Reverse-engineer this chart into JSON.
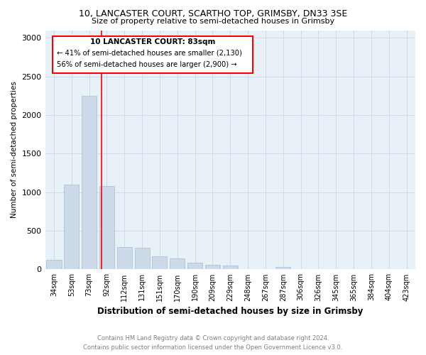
{
  "title1": "10, LANCASTER COURT, SCARTHO TOP, GRIMSBY, DN33 3SE",
  "title2": "Size of property relative to semi-detached houses in Grimsby",
  "xlabel": "Distribution of semi-detached houses by size in Grimsby",
  "ylabel": "Number of semi-detached properties",
  "categories": [
    "34sqm",
    "53sqm",
    "73sqm",
    "92sqm",
    "112sqm",
    "131sqm",
    "151sqm",
    "170sqm",
    "190sqm",
    "209sqm",
    "229sqm",
    "248sqm",
    "267sqm",
    "287sqm",
    "306sqm",
    "326sqm",
    "345sqm",
    "365sqm",
    "384sqm",
    "404sqm",
    "423sqm"
  ],
  "values": [
    120,
    1100,
    2250,
    1080,
    290,
    280,
    165,
    145,
    90,
    60,
    50,
    0,
    0,
    30,
    0,
    0,
    0,
    0,
    0,
    0,
    0
  ],
  "bar_color": "#ccd9e8",
  "bar_edge_color": "#aabbd0",
  "grid_color": "#d0dce8",
  "background_color": "#e8f0f8",
  "red_line_x": 2.72,
  "annotation_title": "10 LANCASTER COURT: 83sqm",
  "annotation_line1": "← 41% of semi-detached houses are smaller (2,130)",
  "annotation_line2": "56% of semi-detached houses are larger (2,900) →",
  "footer1": "Contains HM Land Registry data © Crown copyright and database right 2024.",
  "footer2": "Contains public sector information licensed under the Open Government Licence v3.0.",
  "ylim": [
    0,
    3100
  ],
  "yticks": [
    0,
    500,
    1000,
    1500,
    2000,
    2500,
    3000
  ]
}
